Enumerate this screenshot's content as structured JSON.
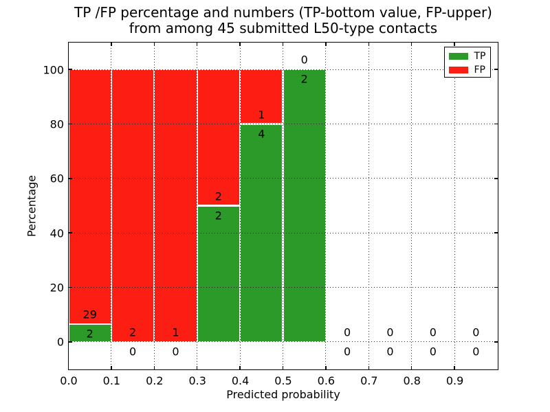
{
  "chart_data": {
    "type": "bar",
    "stacked": true,
    "title": "TP /FP percentage and numbers (TP-bottom value, FP-upper) from among 45 submitted L50-type contacts",
    "title_lines": [
      "TP /FP percentage and numbers (TP-bottom value, FP-upper)",
      "from among 45 submitted L50-type contacts"
    ],
    "xlabel": "Predicted probability",
    "ylabel": "Percentage",
    "total_contacts": 45,
    "xlim": [
      0,
      1.0
    ],
    "ylim": [
      -10,
      110
    ],
    "grid": "dotted",
    "legend_position": "upper-right",
    "bin_width": 0.1,
    "bin_starts": [
      0,
      0.1,
      0.2,
      0.3,
      0.4,
      0.5,
      0.6,
      0.7,
      0.8,
      0.9
    ],
    "xtick_values": [
      0,
      0.1,
      0.2,
      0.3,
      0.4,
      0.5,
      0.6,
      0.7,
      0.8,
      0.9
    ],
    "xtick_labels": [
      "0.0",
      "0.1",
      "0.2",
      "0.3",
      "0.4",
      "0.5",
      "0.6",
      "0.7",
      "0.8",
      "0.9"
    ],
    "ytick_values": [
      0,
      20,
      40,
      60,
      80,
      100
    ],
    "ytick_labels": [
      "0",
      "20",
      "40",
      "60",
      "80",
      "100"
    ],
    "series": [
      {
        "name": "TP",
        "color": "#2b9a28",
        "counts": [
          2,
          0,
          0,
          2,
          4,
          2,
          0,
          0,
          0,
          0
        ],
        "pct": [
          6.45,
          0,
          0,
          50,
          80,
          100,
          0,
          0,
          0,
          0
        ]
      },
      {
        "name": "FP",
        "color": "#fc1d13",
        "counts": [
          29,
          2,
          1,
          2,
          1,
          0,
          0,
          0,
          0,
          0
        ],
        "pct": [
          93.55,
          100,
          100,
          50,
          20,
          0,
          0,
          0,
          0,
          0
        ]
      }
    ],
    "legend": [
      {
        "label": "TP",
        "color": "#2b9a28"
      },
      {
        "label": "FP",
        "color": "#fc1d13"
      }
    ]
  },
  "colors": {
    "tp_green": "#2b9a28",
    "fp_red": "#fc1d13",
    "axis": "#000000",
    "background": "#ffffff"
  }
}
